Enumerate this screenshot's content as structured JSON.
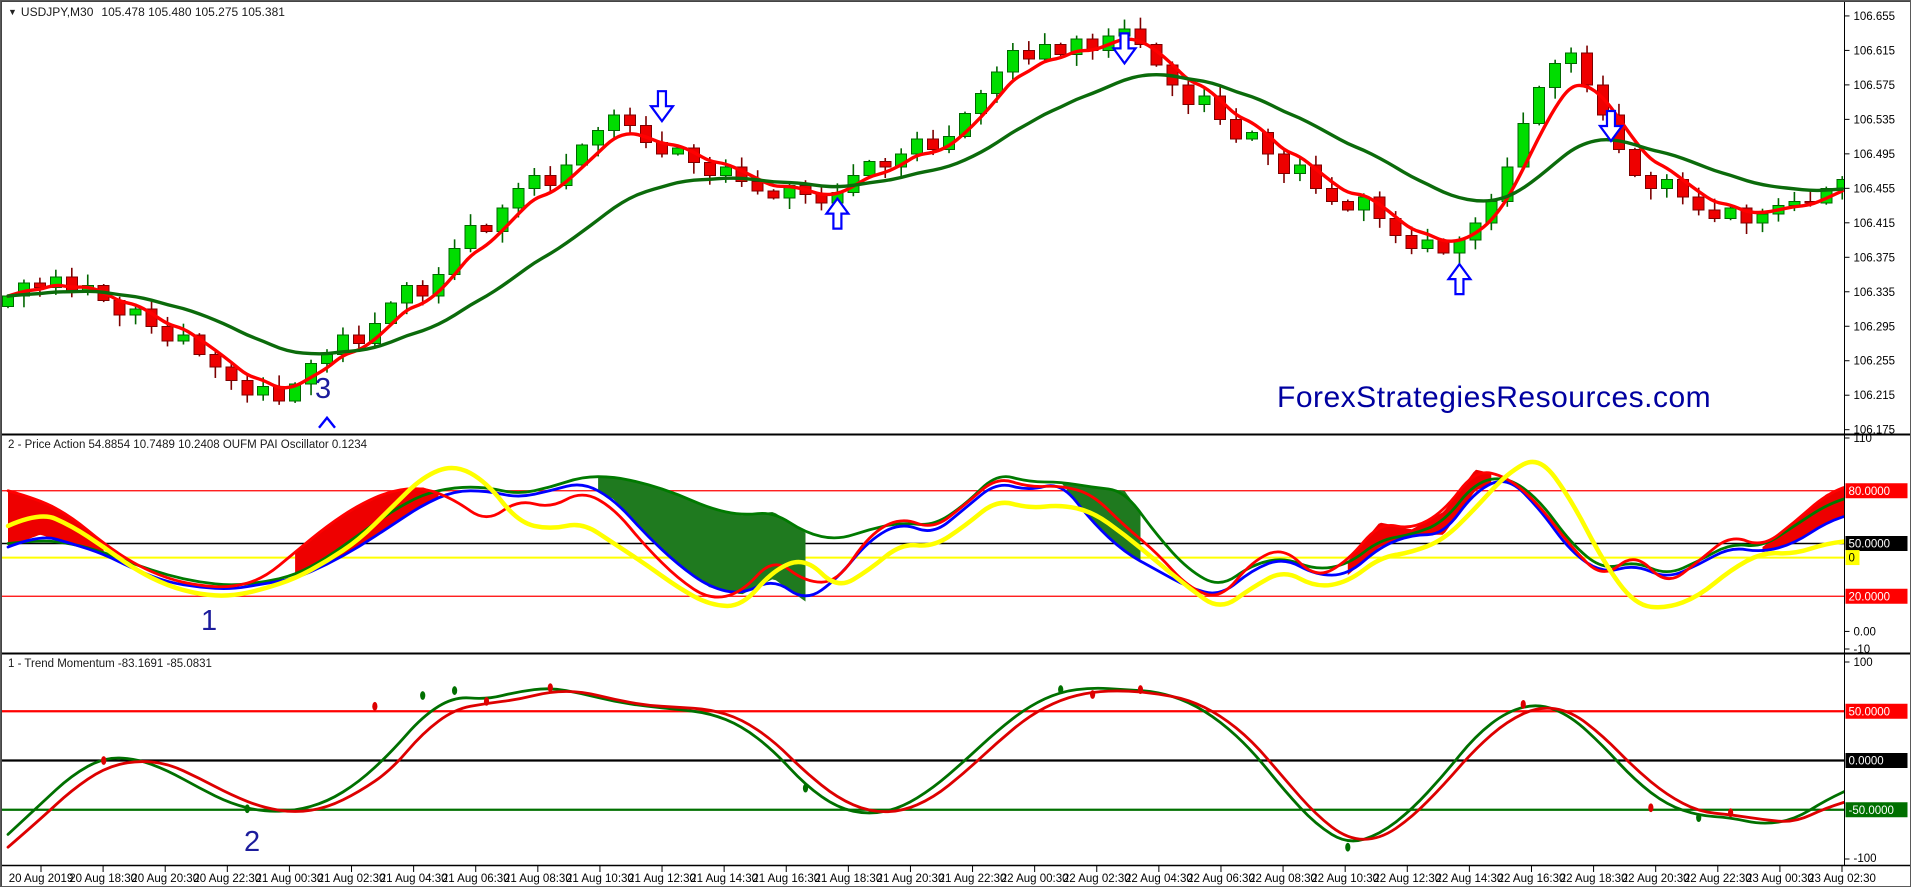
{
  "window": {
    "bg": "#ffffff",
    "border": "#5a5a5a"
  },
  "header": {
    "dropdown_icon": "▼",
    "symbol": "USDJPY,M30",
    "ohlc": "105.478 105.480 105.275 105.381"
  },
  "panels": {
    "oscillator_title": "2 - Price Action 54.8854 10.7489 10.2408  OUFM PAI Oscillator 0.1234",
    "momentum_title": "1 - Trend Momentum -83.1691 -85.0831"
  },
  "watermark": {
    "text": "ForexStrategiesResources.com",
    "color": "#0000a0"
  },
  "annotations": {
    "main_number": "3",
    "osc_number": "1",
    "mom_number": "2",
    "color": "#1c1c9c"
  },
  "time_axis": {
    "labels": [
      "20 Aug 2019",
      "20 Aug 18:30",
      "20 Aug 20:30",
      "20 Aug 22:30",
      "21 Aug 00:30",
      "21 Aug 02:30",
      "21 Aug 04:30",
      "21 Aug 06:30",
      "21 Aug 08:30",
      "21 Aug 10:30",
      "21 Aug 12:30",
      "21 Aug 14:30",
      "21 Aug 16:30",
      "21 Aug 18:30",
      "21 Aug 20:30",
      "21 Aug 22:30",
      "22 Aug 00:30",
      "22 Aug 02:30",
      "22 Aug 04:30",
      "22 Aug 06:30",
      "22 Aug 08:30",
      "22 Aug 10:30",
      "22 Aug 12:30",
      "22 Aug 14:30",
      "22 Aug 16:30",
      "22 Aug 18:30",
      "22 Aug 20:30",
      "22 Aug 22:30",
      "23 Aug 00:30",
      "23 Aug 02:30"
    ]
  },
  "chart_data": [
    {
      "type": "candlestick",
      "title": "USDJPY,M30",
      "ylim": [
        106.17,
        106.67
      ],
      "yticks": [
        106.655,
        106.615,
        106.575,
        106.535,
        106.495,
        106.455,
        106.415,
        106.375,
        106.335,
        106.295,
        106.255,
        106.215,
        106.175
      ],
      "bull_color": "#00dd00",
      "bull_border": "#006600",
      "bear_color": "#ee0000",
      "bear_border": "#7c0000",
      "closes": [
        106.33,
        106.345,
        106.34,
        106.352,
        106.335,
        106.342,
        106.325,
        106.308,
        106.315,
        106.295,
        106.278,
        106.285,
        106.262,
        106.248,
        106.232,
        106.215,
        106.225,
        106.208,
        106.228,
        106.252,
        106.262,
        106.285,
        106.275,
        106.298,
        106.322,
        106.342,
        106.33,
        106.355,
        106.385,
        106.412,
        106.405,
        106.432,
        106.455,
        106.47,
        106.458,
        106.482,
        106.505,
        106.522,
        106.54,
        106.528,
        106.508,
        106.495,
        106.502,
        106.485,
        106.47,
        106.48,
        106.463,
        106.452,
        106.444,
        106.458,
        106.448,
        106.438,
        106.45,
        106.47,
        106.486,
        106.48,
        106.495,
        106.512,
        106.5,
        106.515,
        106.542,
        106.565,
        106.59,
        106.615,
        106.605,
        106.622,
        106.61,
        106.628,
        106.615,
        106.632,
        106.64,
        106.622,
        106.598,
        106.575,
        106.552,
        106.562,
        106.535,
        106.512,
        106.52,
        106.495,
        106.472,
        106.482,
        106.455,
        106.44,
        106.43,
        106.445,
        106.42,
        106.4,
        106.385,
        106.395,
        106.38,
        106.395,
        106.415,
        106.44,
        106.48,
        106.53,
        106.572,
        106.6,
        106.612,
        106.575,
        106.54,
        106.5,
        106.47,
        106.455,
        106.465,
        106.445,
        106.43,
        106.42,
        106.432,
        106.415,
        106.425,
        106.435,
        106.44,
        106.438,
        106.455,
        106.465
      ],
      "overlays": [
        {
          "name": "fast-ma",
          "color": "#ff0000",
          "period": 4,
          "width": 3.4
        },
        {
          "name": "slow-ma",
          "color": "#0b6b0b",
          "period": 16,
          "width": 3.4
        }
      ],
      "marker_color": "#0000ff",
      "markers": [
        {
          "type": "down",
          "x": 41,
          "price": 106.548
        },
        {
          "type": "up",
          "x": 52,
          "price": 106.428
        },
        {
          "type": "down",
          "x": 70,
          "price": 106.615
        },
        {
          "type": "up",
          "x": 91,
          "price": 106.352
        },
        {
          "type": "down",
          "x": 100.5,
          "price": 106.525
        },
        {
          "type": "caret",
          "x": 20,
          "price": 106.183
        }
      ]
    },
    {
      "type": "line",
      "name": "Price Action / OUFM PAI Oscillator",
      "ylim": [
        -10,
        110
      ],
      "yticks": [
        {
          "v": 110,
          "t": "110"
        },
        {
          "v": 0,
          "t": "0.00"
        },
        {
          "v": -10,
          "t": "-10"
        }
      ],
      "levels": [
        {
          "v": 80,
          "color": "#ff0000",
          "lw": 1.2,
          "badge": "80.0000",
          "badge_bg": "#ff0000",
          "badge_fg": "#ffffff"
        },
        {
          "v": 50,
          "color": "#000000",
          "lw": 1.4,
          "badge": "50.0000",
          "badge_bg": "#000000",
          "badge_fg": "#ffffff"
        },
        {
          "v": 42,
          "color": "#ffff00",
          "lw": 2.0,
          "badge": "0",
          "badge_bg": "#ffff00",
          "badge_fg": "#000000"
        },
        {
          "v": 20,
          "color": "#ff0000",
          "lw": 1.2,
          "badge": "20.0000",
          "badge_bg": "#ff0000",
          "badge_fg": "#ffffff"
        }
      ],
      "step": 2,
      "series": [
        {
          "name": "pai-green",
          "color": "#007a00",
          "width": 2.8,
          "values": [
            50,
            52,
            50,
            45,
            38,
            32,
            28,
            26,
            28,
            32,
            42,
            55,
            68,
            78,
            82,
            82,
            78,
            82,
            88,
            88,
            84,
            78,
            70,
            66,
            68,
            56,
            52,
            58,
            62,
            60,
            72,
            90,
            85,
            85,
            82,
            80,
            55,
            35,
            25,
            38,
            42,
            35,
            38,
            52,
            55,
            62,
            85,
            88,
            75,
            50,
            35,
            40,
            32,
            40,
            50,
            48,
            60,
            72,
            78
          ]
        },
        {
          "name": "pai-blue",
          "color": "#0000ff",
          "width": 2.8,
          "values": [
            48,
            55,
            50,
            44,
            35,
            28,
            25,
            24,
            27,
            30,
            38,
            48,
            60,
            72,
            80,
            80,
            76,
            80,
            85,
            75,
            55,
            38,
            25,
            21,
            30,
            17,
            30,
            52,
            62,
            55,
            70,
            85,
            80,
            85,
            62,
            45,
            35,
            25,
            20,
            35,
            42,
            32,
            32,
            48,
            55,
            55,
            80,
            88,
            70,
            45,
            33,
            38,
            30,
            38,
            48,
            45,
            50,
            62,
            68
          ]
        },
        {
          "name": "pai-red",
          "color": "#ff0000",
          "width": 2.8,
          "values": [
            80,
            75,
            65,
            50,
            38,
            30,
            26,
            25,
            30,
            45,
            60,
            72,
            80,
            82,
            75,
            62,
            75,
            70,
            80,
            70,
            48,
            30,
            18,
            22,
            42,
            28,
            28,
            55,
            65,
            58,
            72,
            88,
            82,
            83,
            78,
            60,
            45,
            25,
            18,
            40,
            48,
            30,
            40,
            62,
            58,
            68,
            92,
            88,
            72,
            48,
            30,
            45,
            26,
            40,
            55,
            48,
            62,
            78,
            85
          ]
        },
        {
          "name": "pai-yellow",
          "color": "#ffff00",
          "width": 4.5,
          "values": [
            60,
            68,
            60,
            48,
            35,
            26,
            21,
            20,
            24,
            30,
            40,
            52,
            70,
            88,
            95,
            85,
            62,
            58,
            62,
            50,
            38,
            25,
            15,
            14,
            35,
            42,
            24,
            35,
            50,
            48,
            60,
            75,
            70,
            72,
            68,
            55,
            40,
            25,
            12,
            25,
            35,
            25,
            28,
            42,
            45,
            52,
            70,
            90,
            100,
            75,
            40,
            15,
            13,
            20,
            35,
            45,
            44,
            50,
            52
          ]
        }
      ],
      "fills": [
        {
          "upper": "pai-red",
          "lower": "pai-blue",
          "from": 0,
          "to": 6,
          "color": "#ee0000"
        },
        {
          "upper": "pai-red",
          "lower": "pai-blue",
          "from": 18,
          "to": 27,
          "color": "#ee0000"
        },
        {
          "upper": "pai-green",
          "lower": "pai-blue",
          "from": 37,
          "to": 50,
          "color": "#1f7a1f"
        },
        {
          "upper": "pai-green",
          "lower": "pai-blue",
          "from": 66,
          "to": 71,
          "color": "#1f7a1f"
        },
        {
          "upper": "pai-red",
          "lower": "pai-blue",
          "from": 84,
          "to": 93,
          "color": "#ee0000"
        },
        {
          "upper": "pai-red",
          "lower": "pai-blue",
          "from": 110,
          "to": 116,
          "color": "#ee0000"
        }
      ]
    },
    {
      "type": "line",
      "name": "Trend Momentum",
      "ylim": [
        -100,
        100
      ],
      "yticks": [
        {
          "v": 100,
          "t": "100"
        },
        {
          "v": -100,
          "t": "-100"
        }
      ],
      "levels": [
        {
          "v": 50,
          "color": "#ff0000",
          "lw": 2.2,
          "badge": "50.0000",
          "badge_bg": "#ff0000",
          "badge_fg": "#ffffff"
        },
        {
          "v": 0,
          "color": "#000000",
          "lw": 2.2,
          "badge": "0.0000",
          "badge_bg": "#000000",
          "badge_fg": "#ffffff"
        },
        {
          "v": -50,
          "color": "#007000",
          "lw": 2.2,
          "badge": "-50.0000",
          "badge_bg": "#007000",
          "badge_fg": "#ffffff"
        }
      ],
      "step": 2,
      "series": [
        {
          "name": "momentum-green",
          "color": "#007000",
          "width": 2.8,
          "values": [
            -75,
            -45,
            -15,
            3,
            2,
            -10,
            -28,
            -44,
            -52,
            -51,
            -42,
            -22,
            8,
            45,
            65,
            62,
            70,
            74,
            68,
            60,
            55,
            52,
            48,
            35,
            10,
            -25,
            -48,
            -55,
            -48,
            -28,
            0,
            30,
            55,
            70,
            74,
            72,
            70,
            60,
            40,
            10,
            -30,
            -65,
            -85,
            -75,
            -50,
            -15,
            25,
            50,
            58,
            45,
            15,
            -20,
            -45,
            -56,
            -58,
            -65,
            -60,
            -40,
            -25
          ]
        },
        {
          "name": "momentum-red",
          "color": "#dd0000",
          "width": 2.8,
          "values": [
            -88,
            -60,
            -30,
            -8,
            0,
            -3,
            -18,
            -35,
            -48,
            -53,
            -48,
            -32,
            -10,
            28,
            52,
            58,
            62,
            70,
            70,
            62,
            56,
            54,
            52,
            42,
            20,
            -12,
            -38,
            -52,
            -52,
            -38,
            -12,
            18,
            45,
            62,
            70,
            71,
            68,
            62,
            46,
            20,
            -18,
            -55,
            -80,
            -80,
            -58,
            -25,
            12,
            40,
            55,
            50,
            25,
            -8,
            -35,
            -52,
            -55,
            -60,
            -63,
            -48,
            -38
          ]
        }
      ],
      "dots": [
        {
          "x": 6,
          "v": 0,
          "c": "#dd0000"
        },
        {
          "x": 15,
          "v": -49,
          "c": "#007000"
        },
        {
          "x": 23,
          "v": 55,
          "c": "#dd0000"
        },
        {
          "x": 26,
          "v": 66,
          "c": "#007000"
        },
        {
          "x": 28,
          "v": 71,
          "c": "#007000"
        },
        {
          "x": 30,
          "v": 60,
          "c": "#dd0000"
        },
        {
          "x": 34,
          "v": 74,
          "c": "#dd0000"
        },
        {
          "x": 50,
          "v": -28,
          "c": "#007000"
        },
        {
          "x": 66,
          "v": 72,
          "c": "#007000"
        },
        {
          "x": 68,
          "v": 67,
          "c": "#dd0000"
        },
        {
          "x": 71,
          "v": 72,
          "c": "#dd0000"
        },
        {
          "x": 84,
          "v": -88,
          "c": "#007000"
        },
        {
          "x": 95,
          "v": 57,
          "c": "#dd0000"
        },
        {
          "x": 103,
          "v": -48,
          "c": "#dd0000"
        },
        {
          "x": 106,
          "v": -58,
          "c": "#007000"
        },
        {
          "x": 108,
          "v": -53,
          "c": "#dd0000"
        }
      ]
    }
  ]
}
